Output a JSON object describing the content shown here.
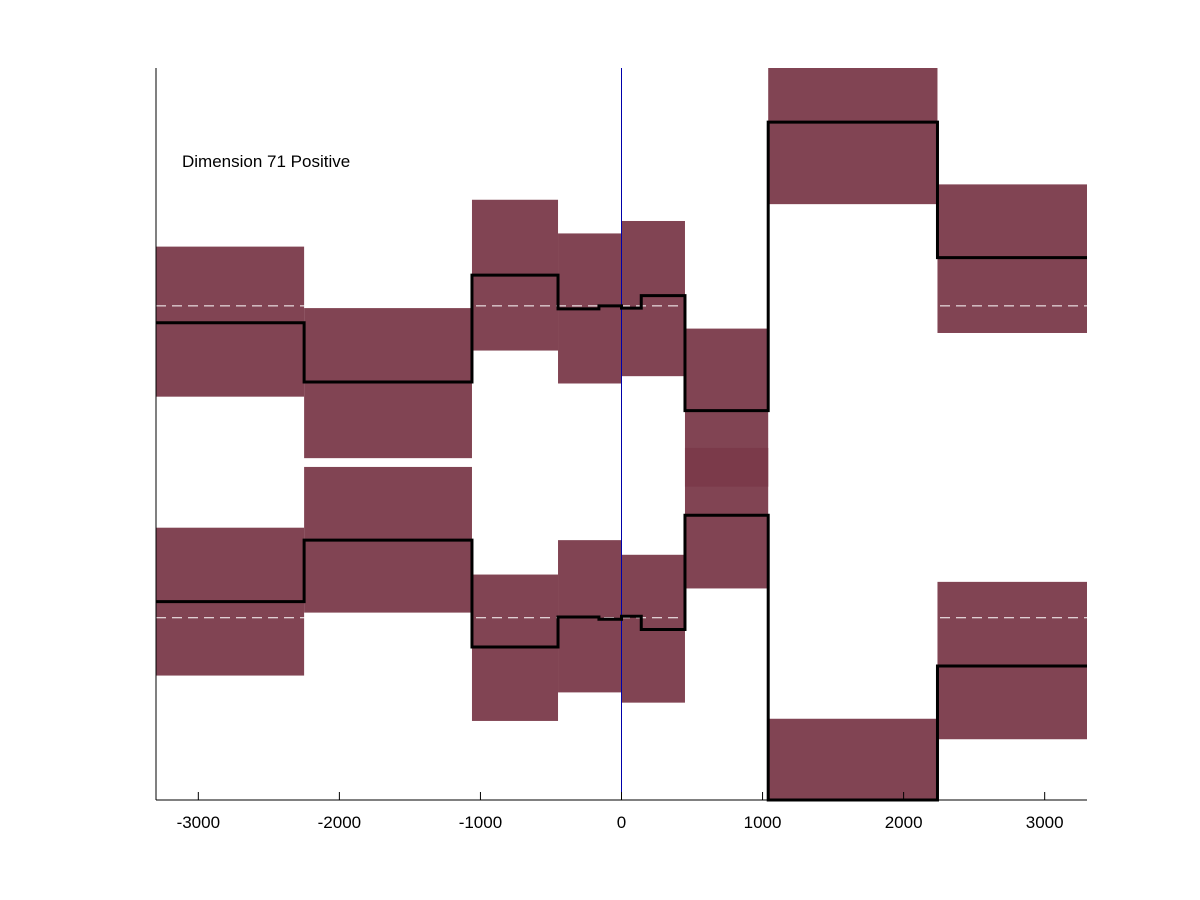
{
  "chart_data": {
    "type": "line",
    "title": "",
    "annotation": "Dimension 71 Positive",
    "xlabel": "",
    "ylabel": "",
    "xlim": [
      -3300,
      3300
    ],
    "ylim": [
      0,
      1
    ],
    "xticks": [
      -3000,
      -2000,
      -1000,
      0,
      1000,
      2000,
      3000
    ],
    "xtick_labels": [
      "-3000",
      "-2000",
      "-1000",
      "0",
      "1000",
      "2000",
      "3000"
    ],
    "yticks_visible": false,
    "grid": false,
    "vertical_marker_x": 0,
    "band_color": "#7a3a4a",
    "line_color": "#000000",
    "marker_color": "#0000aa",
    "dashed_color": "#ffffff",
    "upper_group": {
      "baseline": 0.675,
      "line": [
        {
          "x0": -3300,
          "x1": -2250,
          "y": 0.652
        },
        {
          "x0": -2250,
          "x1": -1060,
          "y": 0.571
        },
        {
          "x0": -1060,
          "x1": -450,
          "y": 0.717
        },
        {
          "x0": -450,
          "x1": -160,
          "y": 0.671
        },
        {
          "x0": -160,
          "x1": 0,
          "y": 0.675
        },
        {
          "x0": 0,
          "x1": 140,
          "y": 0.672
        },
        {
          "x0": 140,
          "x1": 450,
          "y": 0.689
        },
        {
          "x0": 450,
          "x1": 1040,
          "y": 0.532
        },
        {
          "x0": 1040,
          "x1": 2240,
          "y": 0.926
        },
        {
          "x0": 2240,
          "x1": 3300,
          "y": 0.741
        }
      ],
      "band": [
        {
          "x0": -3300,
          "x1": -2250,
          "lo": 0.551,
          "hi": 0.756
        },
        {
          "x0": -2250,
          "x1": -1060,
          "lo": 0.467,
          "hi": 0.672
        },
        {
          "x0": -1060,
          "x1": -450,
          "lo": 0.614,
          "hi": 0.82
        },
        {
          "x0": -450,
          "x1": 0,
          "lo": 0.569,
          "hi": 0.774
        },
        {
          "x0": 0,
          "x1": 450,
          "lo": 0.579,
          "hi": 0.791
        },
        {
          "x0": 450,
          "x1": 1040,
          "lo": 0.428,
          "hi": 0.644
        },
        {
          "x0": 1040,
          "x1": 2240,
          "lo": 0.814,
          "hi": 1.0
        },
        {
          "x0": 2240,
          "x1": 3300,
          "lo": 0.638,
          "hi": 0.841
        }
      ]
    },
    "lower_group": {
      "baseline": 0.249,
      "line": [
        {
          "x0": -3300,
          "x1": -2250,
          "y": 0.271
        },
        {
          "x0": -2250,
          "x1": -1060,
          "y": 0.355
        },
        {
          "x0": -1060,
          "x1": -450,
          "y": 0.209
        },
        {
          "x0": -450,
          "x1": -160,
          "y": 0.25
        },
        {
          "x0": -160,
          "x1": 0,
          "y": 0.247
        },
        {
          "x0": 0,
          "x1": 140,
          "y": 0.251
        },
        {
          "x0": 140,
          "x1": 450,
          "y": 0.233
        },
        {
          "x0": 450,
          "x1": 1040,
          "y": 0.389
        },
        {
          "x0": 1040,
          "x1": 2240,
          "y": -0.05
        },
        {
          "x0": 2240,
          "x1": 3300,
          "y": 0.183
        }
      ],
      "band": [
        {
          "x0": -3300,
          "x1": -2250,
          "lo": 0.17,
          "hi": 0.372
        },
        {
          "x0": -2250,
          "x1": -1060,
          "lo": 0.256,
          "hi": 0.455
        },
        {
          "x0": -1060,
          "x1": -450,
          "lo": 0.108,
          "hi": 0.308
        },
        {
          "x0": -450,
          "x1": 0,
          "lo": 0.147,
          "hi": 0.355
        },
        {
          "x0": 0,
          "x1": 450,
          "lo": 0.133,
          "hi": 0.335
        },
        {
          "x0": 450,
          "x1": 1040,
          "lo": 0.289,
          "hi": 0.481
        },
        {
          "x0": 1040,
          "x1": 2240,
          "lo": 0.0,
          "hi": 0.111
        },
        {
          "x0": 2240,
          "x1": 3300,
          "lo": 0.083,
          "hi": 0.298
        }
      ]
    }
  }
}
